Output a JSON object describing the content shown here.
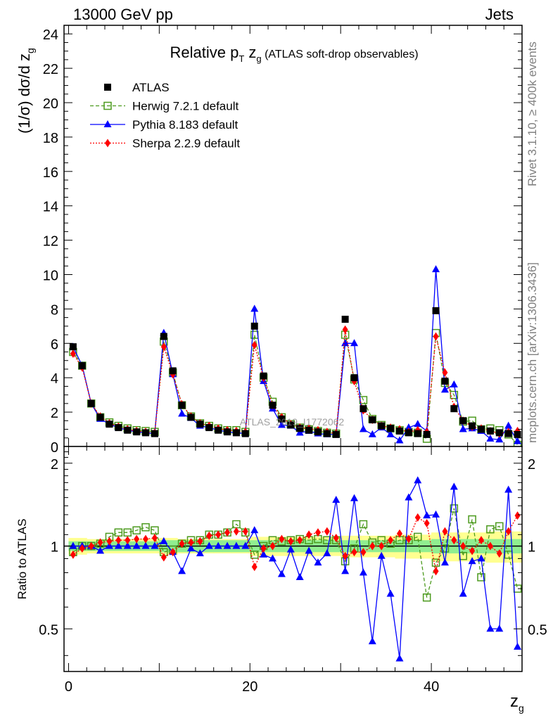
{
  "header": {
    "left": "13000 GeV pp",
    "right": "Jets"
  },
  "side_labels": {
    "rivet": "Rivet 3.1.10, ≥ 400k events",
    "mcplots": "mcplots.cern.ch [arXiv:1306.3436]"
  },
  "watermark": "ATLAS_2019_I1772062",
  "chart_data": [
    {
      "type": "line",
      "panel": "main",
      "title": {
        "prefix": "Relative p",
        "sub": "T",
        "mid": " z",
        "sub2": "g",
        "suffix": " (ATLAS soft-drop observables)"
      },
      "ylabel": "(1/σ) dσ/d z",
      "ylabel_sub": "g",
      "xlim": [
        -0.5,
        50
      ],
      "ylim": [
        0,
        24.5
      ],
      "y_ticks": [
        0,
        2,
        4,
        6,
        8,
        10,
        12,
        14,
        16,
        18,
        20,
        22,
        24
      ],
      "x_ticks": [
        0,
        20,
        40
      ],
      "x": [
        0.5,
        1.5,
        2.5,
        3.5,
        4.5,
        5.5,
        6.5,
        7.5,
        8.5,
        9.5,
        10.5,
        11.5,
        12.5,
        13.5,
        14.5,
        15.5,
        16.5,
        17.5,
        18.5,
        19.5,
        20.5,
        21.5,
        22.5,
        23.5,
        24.5,
        25.5,
        26.5,
        27.5,
        28.5,
        29.5,
        30.5,
        31.5,
        32.5,
        33.5,
        34.5,
        35.5,
        36.5,
        37.5,
        38.5,
        39.5,
        40.5,
        41.5,
        42.5,
        43.5,
        44.5,
        45.5,
        46.5,
        47.5,
        48.5,
        49.5
      ],
      "series": [
        {
          "name": "ATLAS",
          "color": "#000000",
          "marker": "square",
          "values": [
            5.8,
            4.7,
            2.5,
            1.7,
            1.3,
            1.1,
            0.95,
            0.85,
            0.8,
            0.75,
            6.4,
            4.4,
            2.4,
            1.7,
            1.3,
            1.1,
            0.95,
            0.85,
            0.8,
            0.75,
            7.0,
            4.1,
            2.4,
            1.6,
            1.25,
            1.05,
            0.95,
            0.85,
            0.75,
            0.7,
            7.4,
            4.0,
            2.2,
            1.55,
            1.2,
            1.05,
            0.9,
            0.8,
            0.75,
            0.7,
            7.9,
            3.8,
            2.2,
            1.5,
            1.2,
            1.0,
            0.9,
            0.8,
            0.75,
            0.7
          ]
        },
        {
          "name": "Herwig 7.2.1 default",
          "color": "#4c9a1e",
          "marker": "open-square",
          "dash": "5,3",
          "values": [
            5.5,
            4.7,
            2.5,
            1.7,
            1.4,
            1.2,
            1.05,
            0.95,
            0.9,
            0.85,
            6.1,
            4.3,
            2.4,
            1.75,
            1.35,
            1.2,
            1.05,
            0.95,
            0.95,
            0.85,
            6.5,
            4.0,
            2.6,
            1.7,
            1.3,
            1.1,
            1.0,
            0.9,
            0.8,
            0.75,
            6.5,
            3.9,
            2.7,
            1.6,
            1.25,
            1.05,
            0.95,
            0.85,
            0.8,
            0.45,
            6.6,
            3.7,
            3.0,
            1.45,
            1.5,
            1.0,
            1.05,
            0.95,
            0.7,
            0.1
          ]
        },
        {
          "name": "Pythia 8.183 default",
          "color": "#0000ff",
          "marker": "triangle",
          "values": [
            5.8,
            4.7,
            2.5,
            1.6,
            1.3,
            1.1,
            0.95,
            0.85,
            0.8,
            0.75,
            6.6,
            4.2,
            1.9,
            1.65,
            1.2,
            1.1,
            0.95,
            0.85,
            0.8,
            0.75,
            8.0,
            3.8,
            2.2,
            1.25,
            1.2,
            0.8,
            0.9,
            0.75,
            0.7,
            0.7,
            6.0,
            6.0,
            1.0,
            0.7,
            1.1,
            0.7,
            0.35,
            1.1,
            1.3,
            0.9,
            10.3,
            3.3,
            3.6,
            1.0,
            1.05,
            0.9,
            0.45,
            0.4,
            1.2,
            0.3
          ]
        },
        {
          "name": "Sherpa 2.2.9 default",
          "color": "#ff0000",
          "marker": "diamond",
          "dash": "2,2",
          "values": [
            5.4,
            4.6,
            2.5,
            1.75,
            1.35,
            1.15,
            1.0,
            0.9,
            0.85,
            0.8,
            5.8,
            4.2,
            2.45,
            1.75,
            1.35,
            1.2,
            1.05,
            0.95,
            0.9,
            0.85,
            5.9,
            4.0,
            2.4,
            1.7,
            1.3,
            1.1,
            1.05,
            0.95,
            0.85,
            0.75,
            6.8,
            3.8,
            2.1,
            1.55,
            1.2,
            1.1,
            1.0,
            0.85,
            0.95,
            0.85,
            6.4,
            4.3,
            2.3,
            1.5,
            1.15,
            1.05,
            0.9,
            0.75,
            0.85,
            0.9
          ]
        }
      ]
    },
    {
      "type": "line",
      "panel": "ratio",
      "ylabel": "Ratio to ATLAS",
      "xlabel": "z",
      "xlabel_sub": "g",
      "xlim": [
        -0.5,
        50
      ],
      "ylim": [
        0.35,
        2.3
      ],
      "y_ticks": [
        0.5,
        1,
        2
      ],
      "y_tick_labels": [
        "0.5",
        "1",
        "2"
      ],
      "x_ticks": [
        0,
        20,
        40
      ],
      "x_tick_labels": [
        "0",
        "20",
        "40"
      ],
      "band_inner": [
        0.04,
        0.04,
        0.04,
        0.04,
        0.04,
        0.04,
        0.04,
        0.04,
        0.04,
        0.04,
        0.05,
        0.05,
        0.05,
        0.05,
        0.05,
        0.05,
        0.05,
        0.05,
        0.05,
        0.05,
        0.05,
        0.05,
        0.05,
        0.05,
        0.05,
        0.05,
        0.05,
        0.05,
        0.05,
        0.05,
        0.05,
        0.05,
        0.05,
        0.05,
        0.05,
        0.05,
        0.05,
        0.05,
        0.05,
        0.05,
        0.06,
        0.06,
        0.06,
        0.06,
        0.06,
        0.06,
        0.06,
        0.06,
        0.06,
        0.06
      ],
      "band_outer": [
        0.07,
        0.07,
        0.06,
        0.06,
        0.06,
        0.06,
        0.06,
        0.06,
        0.06,
        0.06,
        0.07,
        0.07,
        0.06,
        0.06,
        0.06,
        0.06,
        0.06,
        0.06,
        0.06,
        0.06,
        0.08,
        0.08,
        0.08,
        0.08,
        0.08,
        0.08,
        0.08,
        0.08,
        0.08,
        0.08,
        0.09,
        0.09,
        0.09,
        0.09,
        0.09,
        0.09,
        0.1,
        0.1,
        0.1,
        0.1,
        0.12,
        0.12,
        0.12,
        0.12,
        0.12,
        0.12,
        0.13,
        0.13,
        0.13,
        0.13
      ],
      "series": [
        {
          "name": "Herwig 7.2.1 default",
          "color": "#4c9a1e",
          "marker": "open-square",
          "dash": "5,3",
          "values": [
            0.95,
            1.0,
            1.0,
            1.02,
            1.08,
            1.12,
            1.12,
            1.14,
            1.17,
            1.14,
            0.95,
            0.97,
            1.02,
            1.05,
            1.05,
            1.1,
            1.1,
            1.12,
            1.2,
            1.12,
            0.93,
            1.0,
            1.05,
            1.04,
            1.05,
            1.06,
            1.05,
            1.06,
            1.05,
            1.05,
            0.88,
            0.98,
            1.2,
            1.03,
            1.05,
            1.02,
            1.05,
            1.05,
            1.08,
            0.65,
            0.87,
            0.98,
            1.37,
            0.92,
            1.25,
            0.77,
            1.15,
            1.18,
            0.93,
            0.7
          ]
        },
        {
          "name": "Pythia 8.183 default",
          "color": "#0000ff",
          "marker": "triangle",
          "values": [
            1.0,
            1.0,
            1.0,
            0.96,
            1.0,
            1.0,
            1.0,
            1.0,
            1.0,
            1.0,
            1.04,
            0.95,
            0.81,
            0.98,
            0.94,
            1.0,
            1.0,
            1.0,
            1.0,
            1.0,
            1.14,
            0.93,
            0.9,
            0.79,
            0.97,
            0.77,
            0.96,
            0.87,
            0.94,
            1.47,
            0.81,
            1.49,
            0.8,
            0.45,
            0.92,
            0.67,
            0.39,
            1.5,
            1.73,
            1.29,
            1.3,
            0.87,
            1.64,
            0.67,
            0.88,
            0.9,
            0.5,
            0.5,
            1.6,
            0.43
          ]
        },
        {
          "name": "Sherpa 2.2.9 default",
          "color": "#ff0000",
          "marker": "diamond",
          "dash": "2,2",
          "values": [
            0.93,
            0.98,
            1.0,
            1.03,
            1.04,
            1.05,
            1.05,
            1.06,
            1.06,
            1.07,
            0.91,
            0.95,
            1.02,
            1.03,
            1.04,
            1.09,
            1.1,
            1.12,
            1.13,
            1.13,
            0.84,
            0.98,
            1.0,
            1.06,
            1.04,
            1.05,
            1.1,
            1.12,
            1.13,
            1.07,
            0.92,
            0.95,
            0.95,
            1.0,
            1.0,
            1.05,
            1.11,
            1.06,
            1.27,
            1.21,
            0.81,
            1.13,
            1.05,
            1.0,
            0.96,
            1.05,
            1.0,
            0.94,
            1.13,
            1.29
          ]
        }
      ]
    }
  ]
}
